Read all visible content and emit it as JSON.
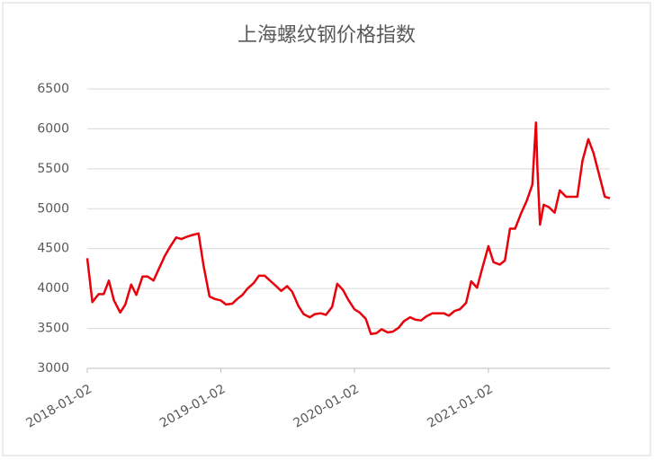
{
  "chart_data": {
    "type": "line",
    "title": "上海螺纹钢价格指数",
    "x": [
      "2018-01-02",
      "2018-01-16",
      "2018-02-02",
      "2018-02-16",
      "2018-03-02",
      "2018-03-16",
      "2018-04-02",
      "2018-04-16",
      "2018-05-02",
      "2018-05-16",
      "2018-06-02",
      "2018-06-16",
      "2018-07-02",
      "2018-07-16",
      "2018-08-02",
      "2018-08-16",
      "2018-09-02",
      "2018-09-16",
      "2018-10-02",
      "2018-10-16",
      "2018-11-02",
      "2018-11-16",
      "2018-12-02",
      "2018-12-16",
      "2019-01-02",
      "2019-01-16",
      "2019-02-02",
      "2019-02-16",
      "2019-03-02",
      "2019-03-16",
      "2019-04-02",
      "2019-04-16",
      "2019-05-02",
      "2019-05-16",
      "2019-06-02",
      "2019-06-16",
      "2019-07-02",
      "2019-07-16",
      "2019-08-02",
      "2019-08-16",
      "2019-09-02",
      "2019-09-16",
      "2019-10-02",
      "2019-10-16",
      "2019-11-02",
      "2019-11-16",
      "2019-12-02",
      "2019-12-16",
      "2020-01-02",
      "2020-01-16",
      "2020-02-02",
      "2020-02-16",
      "2020-03-02",
      "2020-03-16",
      "2020-04-02",
      "2020-04-16",
      "2020-05-02",
      "2020-05-16",
      "2020-06-02",
      "2020-06-16",
      "2020-07-02",
      "2020-07-16",
      "2020-08-02",
      "2020-08-16",
      "2020-09-02",
      "2020-09-16",
      "2020-10-02",
      "2020-10-16",
      "2020-11-02",
      "2020-11-16",
      "2020-12-02",
      "2020-12-16",
      "2021-01-02",
      "2021-01-16",
      "2021-02-02",
      "2021-02-16",
      "2021-03-02",
      "2021-03-16",
      "2021-04-02",
      "2021-04-16",
      "2021-05-02",
      "2021-05-12",
      "2021-05-16",
      "2021-05-23",
      "2021-06-02",
      "2021-06-16",
      "2021-07-02",
      "2021-07-16",
      "2021-08-02",
      "2021-08-16",
      "2021-09-02",
      "2021-09-16",
      "2021-10-02",
      "2021-10-16",
      "2021-11-02",
      "2021-11-16",
      "2021-11-30"
    ],
    "series": [
      {
        "name": "上海螺纹钢价格指数",
        "color": "#e8000b",
        "values": [
          4380,
          3830,
          3930,
          3930,
          4100,
          3850,
          3700,
          3800,
          4050,
          3920,
          4150,
          4150,
          4100,
          4240,
          4410,
          4520,
          4640,
          4620,
          4650,
          4670,
          4690,
          4280,
          3900,
          3870,
          3850,
          3800,
          3810,
          3870,
          3920,
          4000,
          4070,
          4160,
          4160,
          4100,
          4030,
          3970,
          4030,
          3960,
          3780,
          3680,
          3640,
          3680,
          3690,
          3670,
          3770,
          4060,
          3980,
          3860,
          3740,
          3700,
          3620,
          3430,
          3440,
          3490,
          3450,
          3460,
          3510,
          3590,
          3640,
          3610,
          3600,
          3650,
          3690,
          3690,
          3690,
          3660,
          3720,
          3740,
          3820,
          4090,
          4010,
          4250,
          4530,
          4330,
          4300,
          4350,
          4750,
          4750,
          4950,
          5090,
          5300,
          6080,
          5500,
          4800,
          5050,
          5020,
          4950,
          5230,
          5150,
          5150,
          5150,
          5600,
          5870,
          5700,
          5400,
          5150,
          5130
        ]
      }
    ],
    "xlim": [
      "2018-01-02",
      "2021-11-30"
    ],
    "xticks": [
      "2018-01-02",
      "2019-01-02",
      "2020-01-02",
      "2021-01-02"
    ],
    "ylim": [
      3000,
      6500
    ],
    "yticks": [
      3000,
      3500,
      4000,
      4500,
      5000,
      5500,
      6000,
      6500
    ],
    "grid": true
  }
}
